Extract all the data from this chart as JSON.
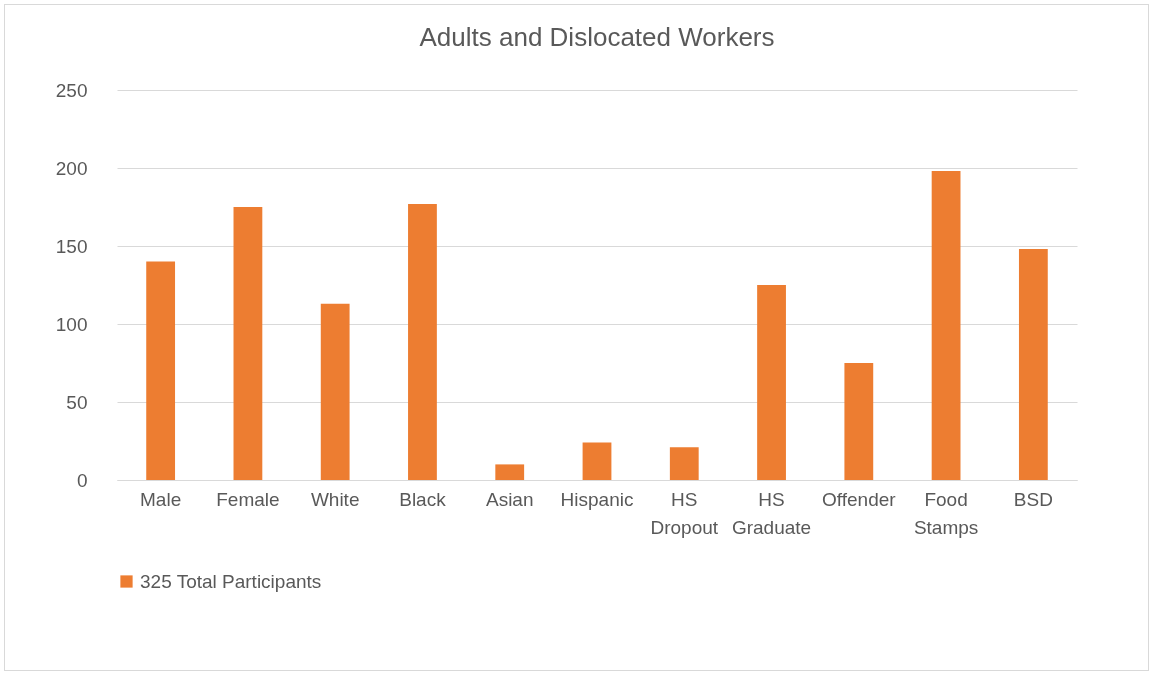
{
  "chart_data": {
    "type": "bar",
    "title": "Adults and Dislocated Workers",
    "categories": [
      "Male",
      "Female",
      "White",
      "Black",
      "Asian",
      "Hispanic",
      "HS Dropout",
      "HS Graduate",
      "Offender",
      "Food Stamps",
      "BSD"
    ],
    "series": [
      {
        "name": "325 Total Participants",
        "color": "#ed7d31",
        "values": [
          140,
          175,
          113,
          177,
          10,
          24,
          21,
          125,
          75,
          198,
          148
        ]
      }
    ],
    "ylim": [
      0,
      250
    ],
    "yticks": [
      0,
      50,
      100,
      150,
      200,
      250
    ],
    "grid": "y",
    "legend": "bottom"
  }
}
